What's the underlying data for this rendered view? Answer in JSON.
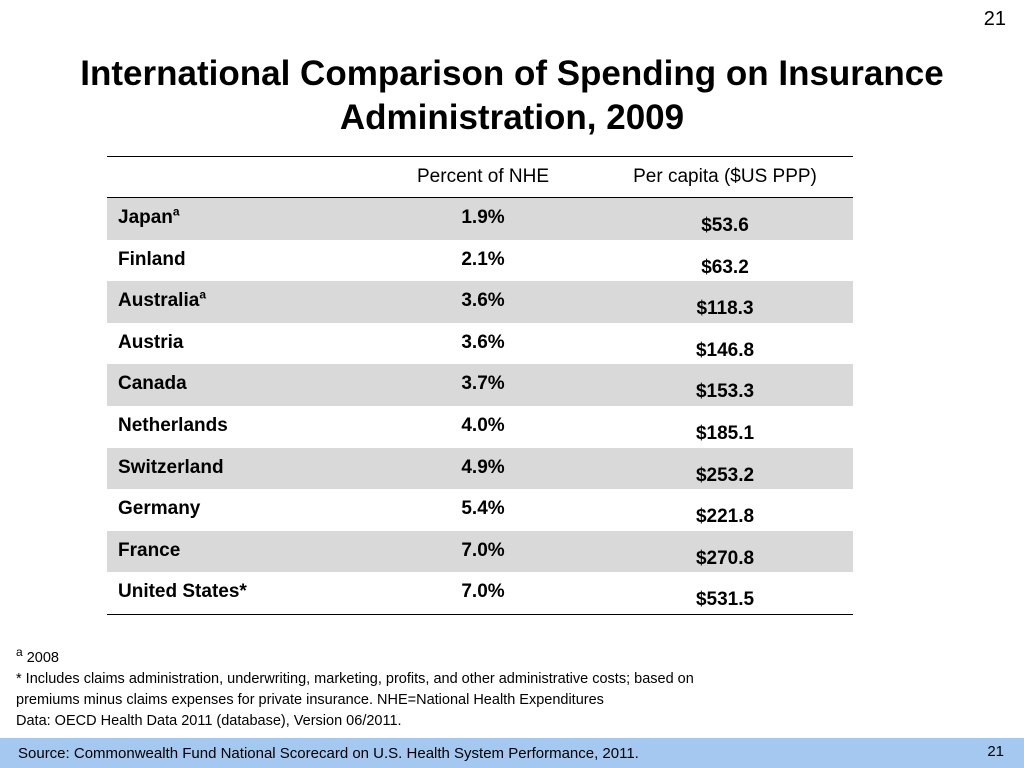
{
  "page_number": "21",
  "title": {
    "line1": "International Comparison of Spending on Insurance",
    "line2": "Administration, 2009"
  },
  "table": {
    "headers": [
      "",
      "Percent of NHE",
      "Per capita ($US PPP)"
    ],
    "rows": [
      {
        "country": "Japan",
        "sup": "a",
        "percent": "1.9%",
        "per_capita": "$53.6"
      },
      {
        "country": "Finland",
        "sup": "",
        "percent": "2.1%",
        "per_capita": "$63.2"
      },
      {
        "country": "Australia",
        "sup": "a",
        "percent": "3.6%",
        "per_capita": "$118.3"
      },
      {
        "country": "Austria",
        "sup": "",
        "percent": "3.6%",
        "per_capita": "$146.8"
      },
      {
        "country": "Canada",
        "sup": "",
        "percent": "3.7%",
        "per_capita": "$153.3"
      },
      {
        "country": "Netherlands",
        "sup": "",
        "percent": "4.0%",
        "per_capita": "$185.1"
      },
      {
        "country": "Switzerland",
        "sup": "",
        "percent": "4.9%",
        "per_capita": "$253.2"
      },
      {
        "country": "Germany",
        "sup": "",
        "percent": "5.4%",
        "per_capita": "$221.8"
      },
      {
        "country": "France",
        "sup": "",
        "percent": "7.0%",
        "per_capita": "$270.8"
      },
      {
        "country": "United States*",
        "sup": "",
        "percent": "7.0%",
        "per_capita": "$531.5"
      }
    ]
  },
  "notes": {
    "a_marker": "a",
    "a_text": " 2008",
    "star_line1": "* Includes claims administration, underwriting, marketing, profits, and other administrative costs; based on",
    "star_line2": "premiums minus claims expenses for private insurance. NHE=National Health Expenditures",
    "data_line": "Data: OECD Health Data 2011 (database), Version 06/2011."
  },
  "footer": {
    "source": "Source: Commonwealth Fund National Scorecard on U.S. Health System Performance, 2011.",
    "page_number": "21"
  }
}
